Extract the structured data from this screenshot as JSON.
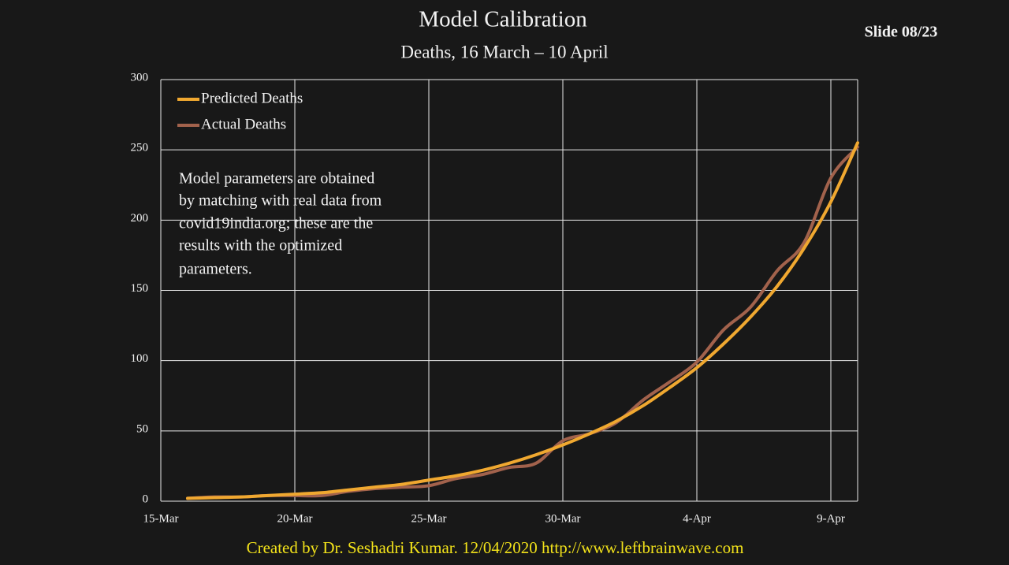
{
  "slide_number": "Slide 08/23",
  "footer": "Created by Dr. Seshadri Kumar. 12/04/2020 http://www.leftbrainwave.com",
  "annotation": [
    "Model parameters are obtained",
    "by matching with real data from",
    "covid19india.org; these are the",
    "results with the optimized",
    "parameters."
  ],
  "chart_data": {
    "type": "line",
    "title": "Model Calibration",
    "subtitle": "Deaths, 16 March – 10 April",
    "x": [
      "16-Mar",
      "17-Mar",
      "18-Mar",
      "19-Mar",
      "20-Mar",
      "21-Mar",
      "22-Mar",
      "23-Mar",
      "24-Mar",
      "25-Mar",
      "26-Mar",
      "27-Mar",
      "28-Mar",
      "29-Mar",
      "30-Mar",
      "31-Mar",
      "1-Apr",
      "2-Apr",
      "3-Apr",
      "4-Apr",
      "5-Apr",
      "6-Apr",
      "7-Apr",
      "8-Apr",
      "9-Apr",
      "10-Apr"
    ],
    "series": [
      {
        "name": "Predicted Deaths",
        "color": "#f0a830",
        "values": [
          2,
          2.5,
          3,
          4,
          5,
          6,
          8,
          10,
          12,
          15,
          18,
          22,
          27,
          33,
          40,
          48,
          57,
          68,
          81,
          95,
          112,
          131,
          153,
          180,
          213,
          255
        ]
      },
      {
        "name": "Actual Deaths",
        "color": "#a2624c",
        "values": [
          2,
          3,
          3,
          4,
          4,
          4,
          7,
          9,
          10,
          11,
          16,
          19,
          24,
          27,
          43,
          48,
          56,
          72,
          85,
          99,
          122,
          138,
          164,
          184,
          230,
          252
        ]
      }
    ],
    "xlim": [
      "15-Mar",
      "10-Apr"
    ],
    "xticks": [
      "15-Mar",
      "20-Mar",
      "25-Mar",
      "30-Mar",
      "4-Apr",
      "9-Apr"
    ],
    "ylim": [
      0,
      300
    ],
    "yticks": [
      0,
      50,
      100,
      150,
      200,
      250,
      300
    ],
    "grid": true,
    "legend": "top-left"
  }
}
